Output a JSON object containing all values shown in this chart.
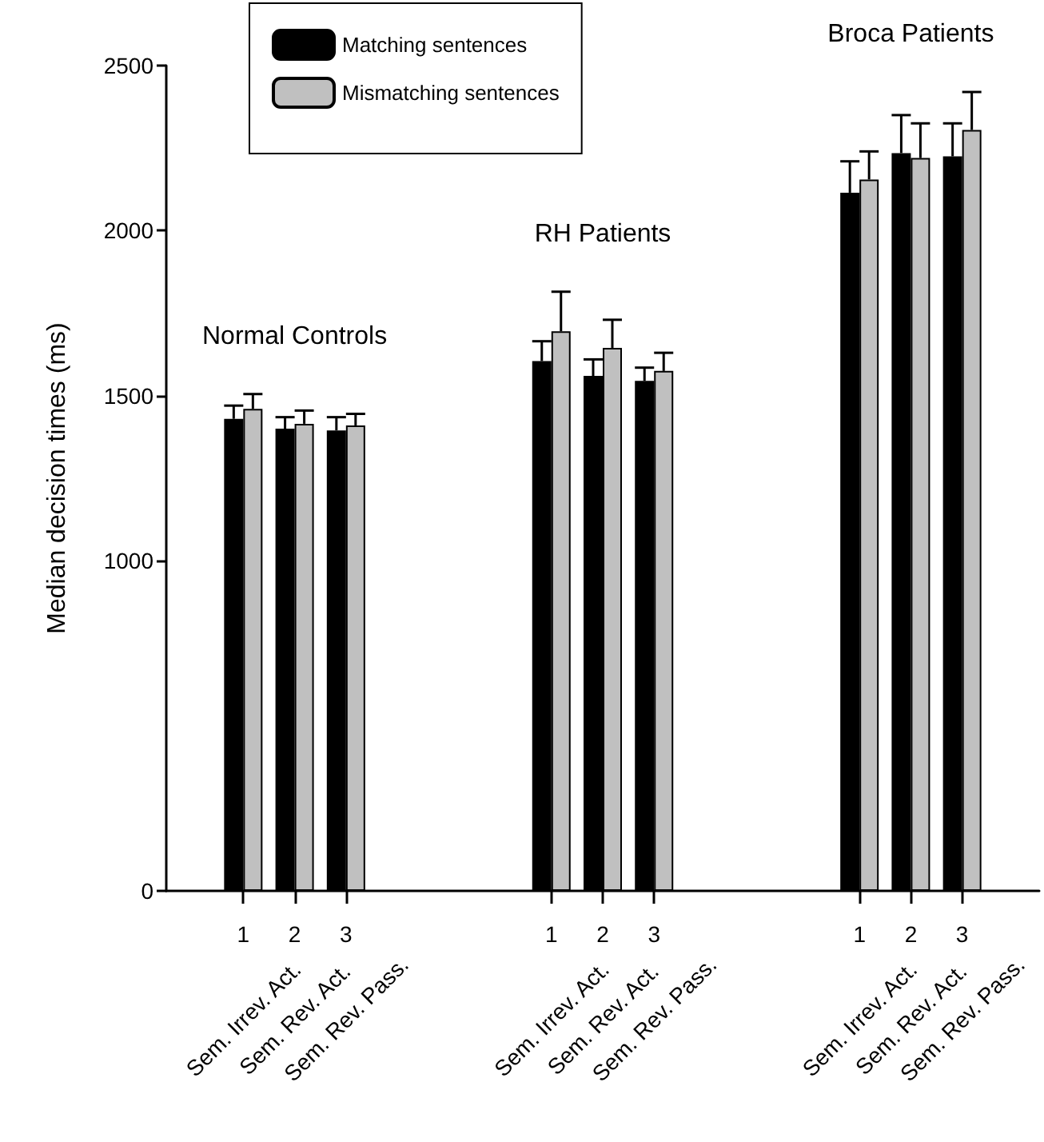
{
  "chart_data": {
    "type": "bar",
    "ylabel": "Median decision times (ms)",
    "categories": [
      null,
      "1\nSem. Irrev. Act.",
      "2\nSem. Rev. Act.",
      "3\nSem. Rev. Pass.",
      null,
      null,
      null,
      "1\nSem. Irrev. Act.",
      "2\nSem. Rev. Act.",
      "3\nSem. Rev. Pass.",
      null,
      null,
      null,
      "1\nSem. Irrev. Act.",
      "2\nSem. Rev. Act.",
      "3\nSem. Rev. Pass.",
      null
    ],
    "series": [
      {
        "name": "Matching sentences",
        "color": "#000000",
        "values": [
          null,
          1430,
          1400,
          1395,
          null,
          null,
          null,
          1605,
          1560,
          1545,
          null,
          null,
          null,
          2115,
          2235,
          2225,
          null
        ],
        "errors": [
          null,
          [
            1430,
            1470
          ],
          [
            1400,
            1435
          ],
          [
            1395,
            1435
          ],
          null,
          null,
          null,
          [
            1605,
            1665
          ],
          [
            1560,
            1610
          ],
          [
            1545,
            1585
          ],
          null,
          null,
          null,
          [
            2115,
            2210
          ],
          [
            2235,
            2350
          ],
          [
            2225,
            2325
          ],
          null
        ]
      },
      {
        "name": "Mismatching sentences",
        "color": "#c0c0c0",
        "values": [
          null,
          1460,
          1415,
          1410,
          null,
          null,
          null,
          1695,
          1645,
          1575,
          null,
          null,
          null,
          2155,
          2220,
          2305,
          null
        ],
        "errors": [
          null,
          [
            1460,
            1505
          ],
          [
            1415,
            1455
          ],
          [
            1410,
            1445
          ],
          null,
          null,
          null,
          [
            1695,
            1815
          ],
          [
            1645,
            1730
          ],
          [
            1575,
            1630
          ],
          null,
          null,
          null,
          [
            2155,
            2240
          ],
          [
            2220,
            2325
          ],
          [
            2305,
            2420
          ],
          null
        ]
      }
    ],
    "ylim": [
      0,
      2500
    ],
    "yticks": [
      0,
      1000,
      1500,
      2000,
      2500
    ],
    "legend": "top left",
    "annotations": [
      "Normal Controls",
      "RH Patients",
      "Broca Patients"
    ]
  }
}
